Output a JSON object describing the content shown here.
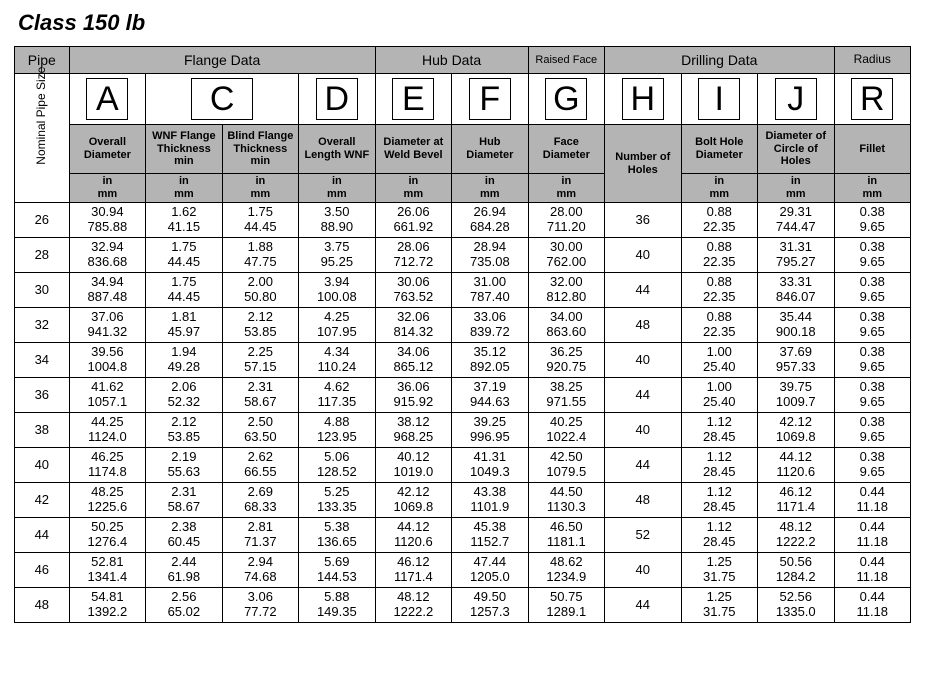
{
  "title": "Class 150 lb",
  "header_groups": {
    "pipe": "Pipe",
    "flange": "Flange Data",
    "hub": "Hub Data",
    "raised": "Raised Face",
    "drilling": "Drilling Data",
    "radius": "Radius"
  },
  "row_label": "Nominal Pipe Size",
  "letters": {
    "A": "A",
    "C": "C",
    "D": "D",
    "E": "E",
    "F": "F",
    "G": "G",
    "H": "H",
    "I": "I",
    "J": "J",
    "R": "R"
  },
  "sublabels": {
    "A": "Overall Diameter",
    "C1": "WNF Flange Thickness min",
    "C2": "Blind Flange Thickness min",
    "D": "Overall Length WNF",
    "E": "Diameter at Weld Bevel",
    "F": "Hub Diameter",
    "G": "Face Diameter",
    "H": "Number of Holes",
    "I": "Bolt Hole Diameter",
    "J": "Diameter of Circle of Holes",
    "R": "Fillet"
  },
  "units_in": "in",
  "units_mm": "mm",
  "rows": [
    {
      "size": "26",
      "A": [
        "30.94",
        "785.88"
      ],
      "C1": [
        "1.62",
        "41.15"
      ],
      "C2": [
        "1.75",
        "44.45"
      ],
      "D": [
        "3.50",
        "88.90"
      ],
      "E": [
        "26.06",
        "661.92"
      ],
      "F": [
        "26.94",
        "684.28"
      ],
      "G": [
        "28.00",
        "711.20"
      ],
      "H": "36",
      "I": [
        "0.88",
        "22.35"
      ],
      "J": [
        "29.31",
        "744.47"
      ],
      "R": [
        "0.38",
        "9.65"
      ]
    },
    {
      "size": "28",
      "A": [
        "32.94",
        "836.68"
      ],
      "C1": [
        "1.75",
        "44.45"
      ],
      "C2": [
        "1.88",
        "47.75"
      ],
      "D": [
        "3.75",
        "95.25"
      ],
      "E": [
        "28.06",
        "712.72"
      ],
      "F": [
        "28.94",
        "735.08"
      ],
      "G": [
        "30.00",
        "762.00"
      ],
      "H": "40",
      "I": [
        "0.88",
        "22.35"
      ],
      "J": [
        "31.31",
        "795.27"
      ],
      "R": [
        "0.38",
        "9.65"
      ]
    },
    {
      "size": "30",
      "A": [
        "34.94",
        "887.48"
      ],
      "C1": [
        "1.75",
        "44.45"
      ],
      "C2": [
        "2.00",
        "50.80"
      ],
      "D": [
        "3.94",
        "100.08"
      ],
      "E": [
        "30.06",
        "763.52"
      ],
      "F": [
        "31.00",
        "787.40"
      ],
      "G": [
        "32.00",
        "812.80"
      ],
      "H": "44",
      "I": [
        "0.88",
        "22.35"
      ],
      "J": [
        "33.31",
        "846.07"
      ],
      "R": [
        "0.38",
        "9.65"
      ]
    },
    {
      "size": "32",
      "A": [
        "37.06",
        "941.32"
      ],
      "C1": [
        "1.81",
        "45.97"
      ],
      "C2": [
        "2.12",
        "53.85"
      ],
      "D": [
        "4.25",
        "107.95"
      ],
      "E": [
        "32.06",
        "814.32"
      ],
      "F": [
        "33.06",
        "839.72"
      ],
      "G": [
        "34.00",
        "863.60"
      ],
      "H": "48",
      "I": [
        "0.88",
        "22.35"
      ],
      "J": [
        "35.44",
        "900.18"
      ],
      "R": [
        "0.38",
        "9.65"
      ]
    },
    {
      "size": "34",
      "A": [
        "39.56",
        "1004.8"
      ],
      "C1": [
        "1.94",
        "49.28"
      ],
      "C2": [
        "2.25",
        "57.15"
      ],
      "D": [
        "4.34",
        "110.24"
      ],
      "E": [
        "34.06",
        "865.12"
      ],
      "F": [
        "35.12",
        "892.05"
      ],
      "G": [
        "36.25",
        "920.75"
      ],
      "H": "40",
      "I": [
        "1.00",
        "25.40"
      ],
      "J": [
        "37.69",
        "957.33"
      ],
      "R": [
        "0.38",
        "9.65"
      ]
    },
    {
      "size": "36",
      "A": [
        "41.62",
        "1057.1"
      ],
      "C1": [
        "2.06",
        "52.32"
      ],
      "C2": [
        "2.31",
        "58.67"
      ],
      "D": [
        "4.62",
        "117.35"
      ],
      "E": [
        "36.06",
        "915.92"
      ],
      "F": [
        "37.19",
        "944.63"
      ],
      "G": [
        "38.25",
        "971.55"
      ],
      "H": "44",
      "I": [
        "1.00",
        "25.40"
      ],
      "J": [
        "39.75",
        "1009.7"
      ],
      "R": [
        "0.38",
        "9.65"
      ]
    },
    {
      "size": "38",
      "A": [
        "44.25",
        "1124.0"
      ],
      "C1": [
        "2.12",
        "53.85"
      ],
      "C2": [
        "2.50",
        "63.50"
      ],
      "D": [
        "4.88",
        "123.95"
      ],
      "E": [
        "38.12",
        "968.25"
      ],
      "F": [
        "39.25",
        "996.95"
      ],
      "G": [
        "40.25",
        "1022.4"
      ],
      "H": "40",
      "I": [
        "1.12",
        "28.45"
      ],
      "J": [
        "42.12",
        "1069.8"
      ],
      "R": [
        "0.38",
        "9.65"
      ]
    },
    {
      "size": "40",
      "A": [
        "46.25",
        "1174.8"
      ],
      "C1": [
        "2.19",
        "55.63"
      ],
      "C2": [
        "2.62",
        "66.55"
      ],
      "D": [
        "5.06",
        "128.52"
      ],
      "E": [
        "40.12",
        "1019.0"
      ],
      "F": [
        "41.31",
        "1049.3"
      ],
      "G": [
        "42.50",
        "1079.5"
      ],
      "H": "44",
      "I": [
        "1.12",
        "28.45"
      ],
      "J": [
        "44.12",
        "1120.6"
      ],
      "R": [
        "0.38",
        "9.65"
      ]
    },
    {
      "size": "42",
      "A": [
        "48.25",
        "1225.6"
      ],
      "C1": [
        "2.31",
        "58.67"
      ],
      "C2": [
        "2.69",
        "68.33"
      ],
      "D": [
        "5.25",
        "133.35"
      ],
      "E": [
        "42.12",
        "1069.8"
      ],
      "F": [
        "43.38",
        "1101.9"
      ],
      "G": [
        "44.50",
        "1130.3"
      ],
      "H": "48",
      "I": [
        "1.12",
        "28.45"
      ],
      "J": [
        "46.12",
        "1171.4"
      ],
      "R": [
        "0.44",
        "11.18"
      ]
    },
    {
      "size": "44",
      "A": [
        "50.25",
        "1276.4"
      ],
      "C1": [
        "2.38",
        "60.45"
      ],
      "C2": [
        "2.81",
        "71.37"
      ],
      "D": [
        "5.38",
        "136.65"
      ],
      "E": [
        "44.12",
        "1120.6"
      ],
      "F": [
        "45.38",
        "1152.7"
      ],
      "G": [
        "46.50",
        "1181.1"
      ],
      "H": "52",
      "I": [
        "1.12",
        "28.45"
      ],
      "J": [
        "48.12",
        "1222.2"
      ],
      "R": [
        "0.44",
        "11.18"
      ]
    },
    {
      "size": "46",
      "A": [
        "52.81",
        "1341.4"
      ],
      "C1": [
        "2.44",
        "61.98"
      ],
      "C2": [
        "2.94",
        "74.68"
      ],
      "D": [
        "5.69",
        "144.53"
      ],
      "E": [
        "46.12",
        "1171.4"
      ],
      "F": [
        "47.44",
        "1205.0"
      ],
      "G": [
        "48.62",
        "1234.9"
      ],
      "H": "40",
      "I": [
        "1.25",
        "31.75"
      ],
      "J": [
        "50.56",
        "1284.2"
      ],
      "R": [
        "0.44",
        "11.18"
      ]
    },
    {
      "size": "48",
      "A": [
        "54.81",
        "1392.2"
      ],
      "C1": [
        "2.56",
        "65.02"
      ],
      "C2": [
        "3.06",
        "77.72"
      ],
      "D": [
        "5.88",
        "149.35"
      ],
      "E": [
        "48.12",
        "1222.2"
      ],
      "F": [
        "49.50",
        "1257.3"
      ],
      "G": [
        "50.75",
        "1289.1"
      ],
      "H": "44",
      "I": [
        "1.25",
        "31.75"
      ],
      "J": [
        "52.56",
        "1335.0"
      ],
      "R": [
        "0.44",
        "11.18"
      ]
    }
  ],
  "style": {
    "header_bg": "#b4b4b4",
    "border_color": "#000000",
    "page_bg": "#ffffff",
    "title_fontsize": 22,
    "data_fontsize": 13,
    "letter_fontsize": 34
  }
}
